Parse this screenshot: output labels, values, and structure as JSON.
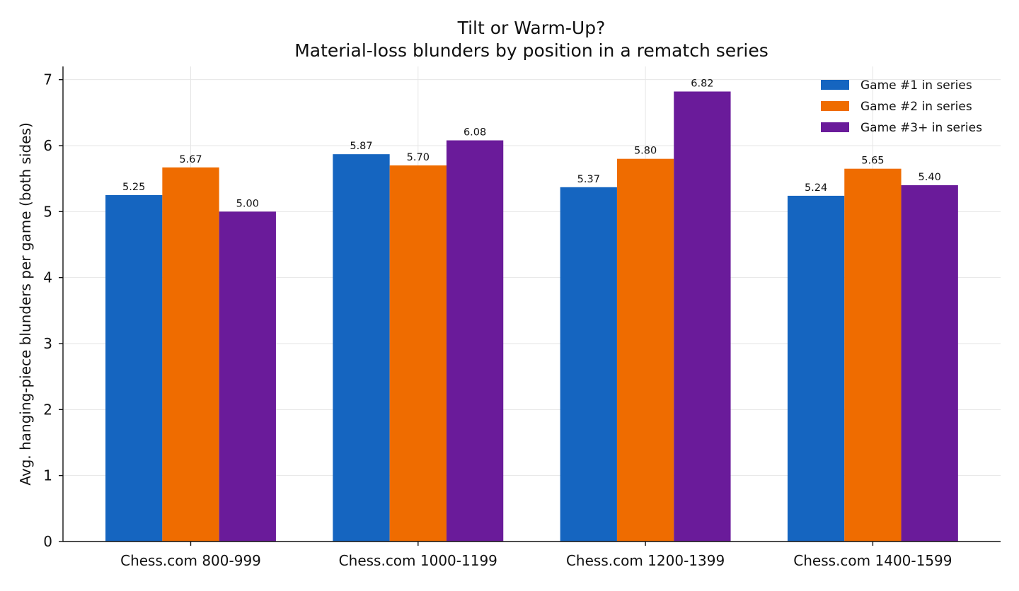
{
  "chart_data": {
    "type": "bar",
    "title": "Tilt or Warm-Up?",
    "subtitle": "Material-loss blunders by position in a rematch series",
    "xlabel": "",
    "ylabel": "Avg. hanging-piece blunders per game (both sides)",
    "categories": [
      "Chess.com 800-999",
      "Chess.com 1000-1199",
      "Chess.com 1200-1399",
      "Chess.com 1400-1599"
    ],
    "series": [
      {
        "name": "Game #1 in series",
        "color": "#1565c0",
        "values": [
          5.25,
          5.87,
          5.37,
          5.24
        ],
        "labels": [
          "5.25",
          "5.87",
          "5.37",
          "5.24"
        ]
      },
      {
        "name": "Game #2 in series",
        "color": "#ef6c00",
        "values": [
          5.67,
          5.7,
          5.8,
          5.65
        ],
        "labels": [
          "5.67",
          "5.70",
          "5.80",
          "5.65"
        ]
      },
      {
        "name": "Game #3+ in series",
        "color": "#6a1b9a",
        "values": [
          5.0,
          6.08,
          6.82,
          5.4
        ],
        "labels": [
          "5.00",
          "6.08",
          "6.82",
          "5.40"
        ]
      }
    ],
    "ylim": [
      0,
      7.2
    ],
    "yticks": [
      0,
      1,
      2,
      3,
      4,
      5,
      6,
      7
    ],
    "ytick_labels": [
      "0",
      "1",
      "2",
      "3",
      "4",
      "5",
      "6",
      "7"
    ],
    "grid": true,
    "legend_position": "top-right"
  }
}
